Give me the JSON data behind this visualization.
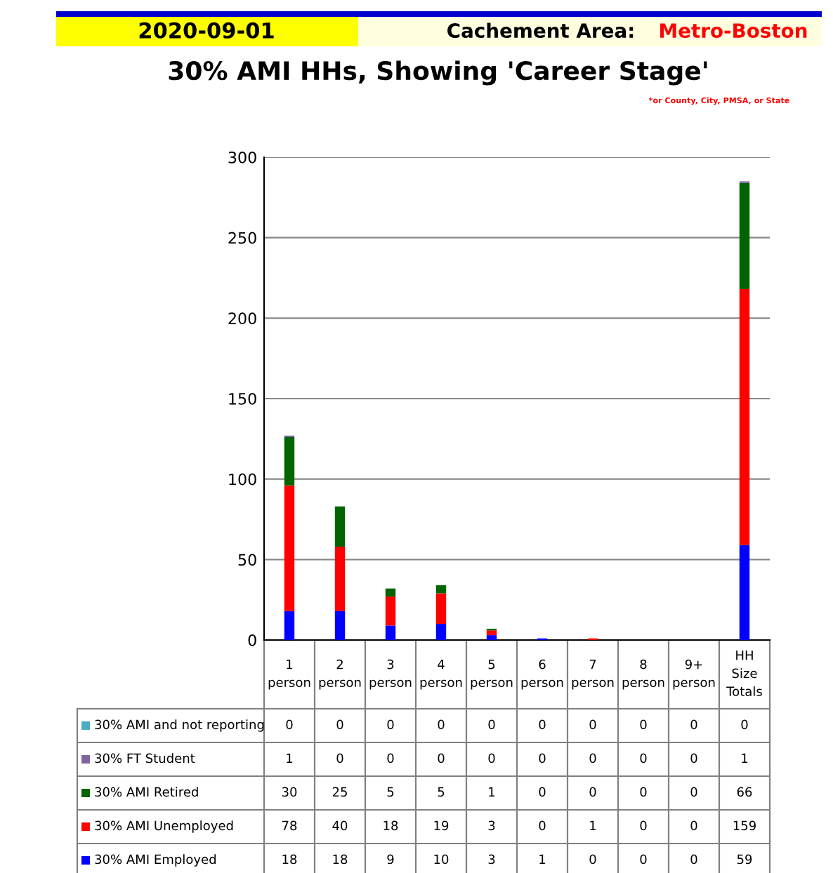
{
  "chart_data": {
    "type": "bar",
    "stacked": true,
    "title": "30% AMI HHs, Showing 'Career Stage'",
    "annotations": [
      "2020-09-01",
      "Cachement Area:",
      "Metro-Boston",
      "*or County, City, PMSA, or State"
    ],
    "categories": [
      "1 person",
      "2 person",
      "3 person",
      "4 person",
      "5 person",
      "6 person",
      "7 person",
      "8 person",
      "9+ person",
      "HH Size Totals"
    ],
    "series": [
      {
        "name": "30% AMI Employed",
        "color": "#0000ff",
        "values": [
          18,
          18,
          9,
          10,
          3,
          1,
          0,
          0,
          0,
          59
        ]
      },
      {
        "name": "30% AMI Unemployed",
        "color": "#ff0000",
        "values": [
          78,
          40,
          18,
          19,
          3,
          0,
          1,
          0,
          0,
          159
        ]
      },
      {
        "name": "30% AMI Retired",
        "color": "#006400",
        "values": [
          30,
          25,
          5,
          5,
          1,
          0,
          0,
          0,
          0,
          66
        ]
      },
      {
        "name": "30% FT Student",
        "color": "#8064a2",
        "values": [
          1,
          0,
          0,
          0,
          0,
          0,
          0,
          0,
          0,
          1
        ]
      },
      {
        "name": "30% AMI and not reporting",
        "color": "#4bacc6",
        "values": [
          0,
          0,
          0,
          0,
          0,
          0,
          0,
          0,
          0,
          0
        ]
      }
    ],
    "ylim": [
      0,
      300
    ],
    "yticks": [
      0,
      50,
      100,
      150,
      200,
      250,
      300
    ],
    "grid": "y",
    "data_labels": true,
    "legend": "bottom"
  }
}
